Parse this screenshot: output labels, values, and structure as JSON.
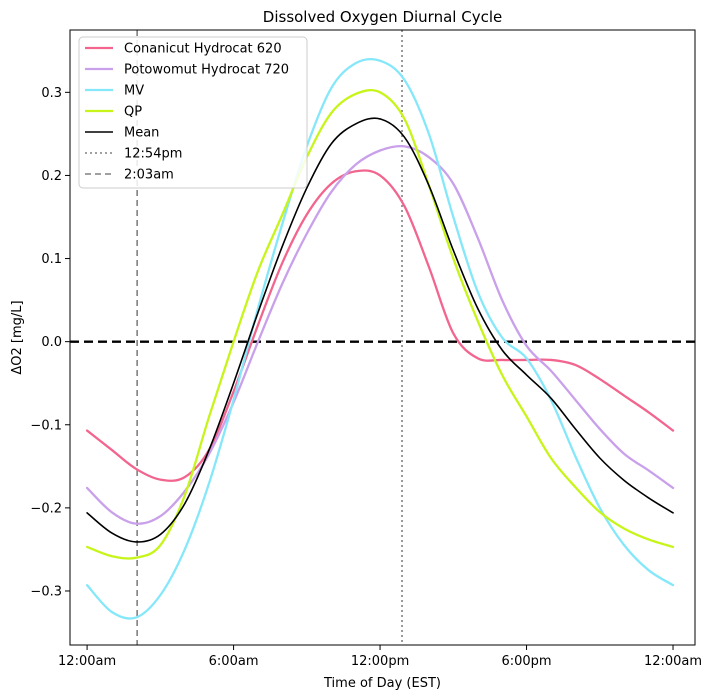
{
  "chart_data": {
    "type": "line",
    "title": "Dissolved Oxygen Diurnal Cycle",
    "xlabel": "Time of Day (EST)",
    "ylabel": "ΔO2 [mg/L]",
    "xlim": [
      -0.7,
      24.9
    ],
    "ylim": [
      -0.365,
      0.375
    ],
    "x_ticks": [
      0,
      6,
      12,
      18,
      24
    ],
    "x_tick_labels": [
      "12:00am",
      "6:00am",
      "12:00pm",
      "6:00pm",
      "12:00am"
    ],
    "y_ticks": [
      -0.3,
      -0.2,
      -0.1,
      0.0,
      0.1,
      0.2,
      0.3
    ],
    "y_tick_labels": [
      "−0.3",
      "−0.2",
      "−0.1",
      "0.0",
      "0.1",
      "0.2",
      "0.3"
    ],
    "legend_position": "top-left",
    "grid": false,
    "x": [
      0,
      1,
      2,
      3,
      4,
      5,
      6,
      7,
      8,
      9,
      10,
      11,
      12,
      13,
      14,
      15,
      16,
      17,
      18,
      19,
      20,
      21,
      22,
      23,
      24
    ],
    "series": [
      {
        "name": "Conanicut Hydrocat 620",
        "color": "#f2658f",
        "style": "solid",
        "values": [
          -0.107,
          -0.13,
          -0.153,
          -0.166,
          -0.163,
          -0.13,
          -0.06,
          0.02,
          0.095,
          0.153,
          0.19,
          0.205,
          0.2,
          0.163,
          0.09,
          0.01,
          -0.02,
          -0.022,
          -0.022,
          -0.022,
          -0.028,
          -0.045,
          -0.065,
          -0.085,
          -0.107
        ]
      },
      {
        "name": "Potowomut Hydrocat 720",
        "color": "#c9a0ea",
        "style": "solid",
        "values": [
          -0.176,
          -0.205,
          -0.219,
          -0.21,
          -0.18,
          -0.135,
          -0.073,
          0.0,
          0.07,
          0.13,
          0.18,
          0.213,
          0.23,
          0.235,
          0.222,
          0.19,
          0.125,
          0.05,
          -0.005,
          -0.035,
          -0.07,
          -0.105,
          -0.135,
          -0.155,
          -0.176
        ]
      },
      {
        "name": "MV",
        "color": "#85e7fa",
        "style": "solid",
        "values": [
          -0.293,
          -0.325,
          -0.332,
          -0.305,
          -0.25,
          -0.17,
          -0.07,
          0.04,
          0.142,
          0.235,
          0.305,
          0.335,
          0.338,
          0.315,
          0.25,
          0.15,
          0.06,
          0.005,
          -0.02,
          -0.07,
          -0.138,
          -0.2,
          -0.245,
          -0.275,
          -0.293
        ]
      },
      {
        "name": "QP",
        "color": "#c7f51a",
        "style": "solid",
        "values": [
          -0.247,
          -0.258,
          -0.26,
          -0.245,
          -0.185,
          -0.09,
          0.0,
          0.085,
          0.153,
          0.222,
          0.275,
          0.298,
          0.3,
          0.268,
          0.188,
          0.1,
          0.025,
          -0.04,
          -0.09,
          -0.14,
          -0.175,
          -0.205,
          -0.225,
          -0.238,
          -0.247
        ]
      },
      {
        "name": "Mean",
        "color": "#000000",
        "style": "solid",
        "values": [
          -0.206,
          -0.23,
          -0.241,
          -0.232,
          -0.195,
          -0.13,
          -0.05,
          0.035,
          0.115,
          0.185,
          0.238,
          0.262,
          0.268,
          0.246,
          0.188,
          0.11,
          0.04,
          -0.01,
          -0.04,
          -0.068,
          -0.105,
          -0.14,
          -0.167,
          -0.188,
          -0.206
        ]
      }
    ],
    "reference_lines": [
      {
        "name": "12:54pm",
        "orientation": "vertical",
        "x": 12.9,
        "color": "#808080",
        "style": "dotted"
      },
      {
        "name": "2:03am",
        "orientation": "vertical",
        "x": 2.05,
        "color": "#808080",
        "style": "dashed"
      },
      {
        "name": "",
        "orientation": "horizontal",
        "y": 0.0,
        "color": "#000000",
        "style": "dashed"
      }
    ]
  }
}
